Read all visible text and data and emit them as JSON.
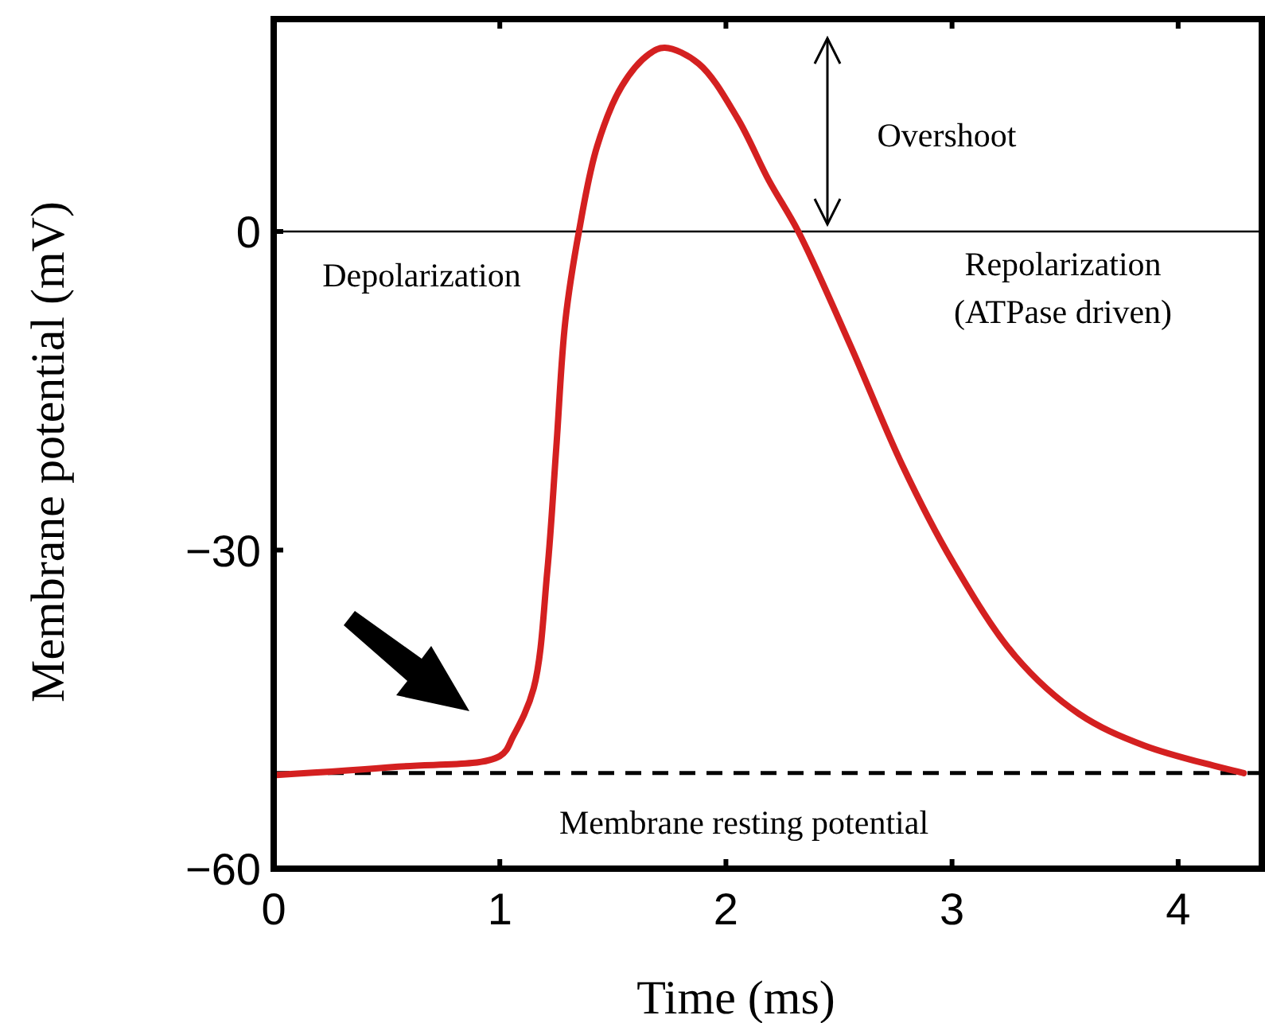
{
  "chart_data": {
    "type": "line",
    "xlabel": "Time (ms)",
    "ylabel": "Membrane potential (mV)",
    "xlim": [
      0,
      4.37
    ],
    "ylim": [
      -60,
      20
    ],
    "xticks": [
      0,
      1,
      2,
      3,
      4
    ],
    "yticks": [
      -60,
      -30,
      0
    ],
    "series": [
      {
        "color": "#d42020",
        "x": [
          0,
          0.55,
          1.0,
          1.06,
          1.15,
          1.21,
          1.25,
          1.29,
          1.35,
          1.43,
          1.54,
          1.66,
          1.73,
          1.88,
          2.05,
          2.19,
          2.32,
          2.55,
          2.78,
          3.0,
          3.28,
          3.56,
          3.85,
          4.29
        ],
        "values": [
          -51.2,
          -50.4,
          -49.4,
          -47.5,
          -43,
          -32,
          -20.3,
          -8.4,
          0,
          8,
          13.7,
          16.7,
          17.3,
          15.8,
          10.7,
          4.8,
          0,
          -10.7,
          -22,
          -31,
          -40,
          -45.4,
          -48.4,
          -51
        ]
      }
    ],
    "ref_lines": [
      {
        "axis": "y",
        "value": 0,
        "color": "#000000",
        "line_style": "solid"
      },
      {
        "axis": "y",
        "value": -51,
        "label": "Membrane resting potential",
        "color": "#000000",
        "line_style": "dashed"
      }
    ],
    "annotations": [
      "Overshoot",
      "Depolarization",
      "Repolarization\n(ATPase driven)"
    ],
    "grid": false,
    "marker": "none",
    "line_style": "solid"
  }
}
